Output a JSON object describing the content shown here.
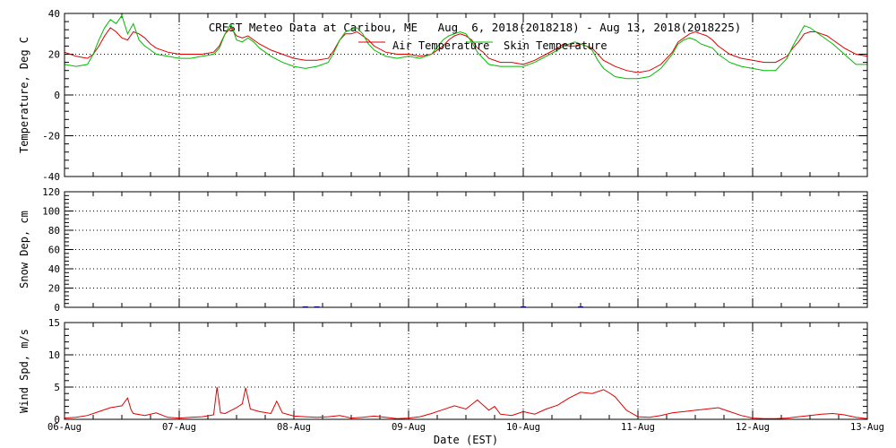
{
  "figure": {
    "title": "CREST Meteo Data at Caribou, ME   Aug  6, 2018(2018218) - Aug 13, 2018(2018225)",
    "xlabel": "Date (EST)"
  },
  "chart_data": [
    {
      "type": "line",
      "ylabel": "Temperature, Deg C",
      "ylim": [
        -40,
        40
      ],
      "yticks": [
        -40,
        -20,
        0,
        20,
        40
      ],
      "xlim": [
        0,
        7
      ],
      "xticks": [
        0,
        1,
        2,
        3,
        4,
        5,
        6,
        7
      ],
      "xtick_labels": [
        "06-Aug",
        "07-Aug",
        "08-Aug",
        "09-Aug",
        "10-Aug",
        "11-Aug",
        "12-Aug",
        "13-Aug"
      ],
      "grid": true,
      "legend_position": "top-center",
      "series": [
        {
          "name": "Air Temperature",
          "color": "#dd0000",
          "x": [
            0,
            0.1,
            0.2,
            0.25,
            0.3,
            0.35,
            0.4,
            0.45,
            0.5,
            0.55,
            0.6,
            0.65,
            0.7,
            0.75,
            0.8,
            0.9,
            1.0,
            1.1,
            1.2,
            1.3,
            1.35,
            1.4,
            1.45,
            1.5,
            1.55,
            1.6,
            1.65,
            1.7,
            1.8,
            1.9,
            2.0,
            2.1,
            2.2,
            2.3,
            2.35,
            2.4,
            2.45,
            2.5,
            2.55,
            2.6,
            2.65,
            2.7,
            2.8,
            2.9,
            3.0,
            3.1,
            3.2,
            3.3,
            3.35,
            3.4,
            3.45,
            3.5,
            3.55,
            3.6,
            3.65,
            3.7,
            3.8,
            3.9,
            4.0,
            4.1,
            4.2,
            4.3,
            4.35,
            4.4,
            4.45,
            4.5,
            4.55,
            4.6,
            4.65,
            4.7,
            4.8,
            4.9,
            5.0,
            5.1,
            5.2,
            5.3,
            5.35,
            5.4,
            5.45,
            5.5,
            5.55,
            5.6,
            5.65,
            5.7,
            5.8,
            5.9,
            6.0,
            6.1,
            6.2,
            6.3,
            6.35,
            6.4,
            6.45,
            6.5,
            6.55,
            6.6,
            6.65,
            6.7,
            6.8,
            6.9,
            7.0
          ],
          "values": [
            21,
            19,
            18,
            20,
            24,
            29,
            33,
            31,
            28,
            27,
            31,
            30,
            28,
            25,
            23,
            21,
            20,
            20,
            20,
            21,
            24,
            30,
            33,
            29,
            28,
            29,
            27,
            25,
            22,
            20,
            18,
            17,
            17,
            18,
            22,
            27,
            30,
            30,
            31,
            29,
            27,
            24,
            21,
            20,
            20,
            19,
            20,
            24,
            27,
            29,
            30,
            29,
            27,
            23,
            21,
            18,
            16,
            16,
            15,
            17,
            20,
            23,
            25,
            24,
            24,
            25,
            24,
            23,
            20,
            17,
            14,
            12,
            11,
            12,
            15,
            21,
            26,
            28,
            30,
            31,
            30,
            29,
            27,
            24,
            20,
            18,
            17,
            16,
            16,
            19,
            23,
            26,
            30,
            31,
            31,
            30,
            29,
            27,
            23,
            20,
            19
          ]
        },
        {
          "name": "Skin Temperature",
          "color": "#00bb00",
          "x": [
            0,
            0.1,
            0.2,
            0.25,
            0.3,
            0.35,
            0.4,
            0.45,
            0.5,
            0.55,
            0.6,
            0.65,
            0.7,
            0.75,
            0.8,
            0.9,
            1.0,
            1.1,
            1.2,
            1.3,
            1.35,
            1.4,
            1.45,
            1.5,
            1.55,
            1.6,
            1.65,
            1.7,
            1.8,
            1.9,
            2.0,
            2.1,
            2.2,
            2.3,
            2.35,
            2.4,
            2.45,
            2.5,
            2.55,
            2.6,
            2.65,
            2.7,
            2.8,
            2.9,
            3.0,
            3.1,
            3.2,
            3.3,
            3.35,
            3.4,
            3.45,
            3.5,
            3.55,
            3.6,
            3.65,
            3.7,
            3.8,
            3.9,
            4.0,
            4.1,
            4.2,
            4.3,
            4.35,
            4.4,
            4.45,
            4.5,
            4.55,
            4.6,
            4.65,
            4.7,
            4.8,
            4.9,
            5.0,
            5.1,
            5.2,
            5.3,
            5.35,
            5.4,
            5.45,
            5.5,
            5.55,
            5.6,
            5.65,
            5.7,
            5.8,
            5.9,
            6.0,
            6.1,
            6.2,
            6.3,
            6.35,
            6.4,
            6.45,
            6.5,
            6.55,
            6.6,
            6.65,
            6.7,
            6.8,
            6.9,
            7.0
          ],
          "values": [
            15,
            14,
            15,
            20,
            27,
            33,
            37,
            35,
            39,
            30,
            35,
            27,
            24,
            22,
            20,
            19,
            18,
            18,
            19,
            20,
            23,
            30,
            35,
            27,
            26,
            28,
            26,
            23,
            19,
            16,
            14,
            13,
            14,
            16,
            21,
            27,
            31,
            32,
            33,
            30,
            25,
            22,
            19,
            18,
            19,
            18,
            20,
            27,
            29,
            30,
            31,
            30,
            26,
            21,
            18,
            15,
            14,
            14,
            14,
            16,
            19,
            22,
            24,
            25,
            26,
            25,
            24,
            22,
            17,
            13,
            9,
            8,
            8,
            9,
            13,
            20,
            25,
            27,
            28,
            27,
            25,
            24,
            23,
            20,
            16,
            14,
            13,
            12,
            12,
            18,
            24,
            29,
            34,
            33,
            31,
            29,
            27,
            25,
            20,
            15,
            15
          ]
        }
      ]
    },
    {
      "type": "line",
      "ylabel": "Snow Dep, cm",
      "ylim": [
        0,
        120
      ],
      "yticks": [
        0,
        20,
        40,
        60,
        80,
        100,
        120
      ],
      "xlim": [
        0,
        7
      ],
      "xticks": [
        0,
        1,
        2,
        3,
        4,
        5,
        6,
        7
      ],
      "grid": true,
      "series": [
        {
          "color": "#0000cc",
          "x": [
            2.1,
            2.2,
            4.0,
            4.5
          ],
          "values": [
            0.5,
            0.5,
            0.5,
            0.5
          ]
        }
      ]
    },
    {
      "type": "line",
      "ylabel": "Wind Spd, m/s",
      "ylim": [
        0,
        15
      ],
      "yticks": [
        0,
        5,
        10,
        15
      ],
      "xlim": [
        0,
        7
      ],
      "xticks": [
        0,
        1,
        2,
        3,
        4,
        5,
        6,
        7
      ],
      "grid": true,
      "series": [
        {
          "color": "#dd0000",
          "x": [
            0,
            0.1,
            0.2,
            0.3,
            0.4,
            0.5,
            0.55,
            0.58,
            0.6,
            0.7,
            0.8,
            0.9,
            1.0,
            1.1,
            1.2,
            1.3,
            1.33,
            1.36,
            1.4,
            1.5,
            1.55,
            1.58,
            1.62,
            1.7,
            1.8,
            1.85,
            1.9,
            2.0,
            2.1,
            2.2,
            2.3,
            2.4,
            2.5,
            2.6,
            2.7,
            2.8,
            2.9,
            3.0,
            3.1,
            3.2,
            3.3,
            3.4,
            3.5,
            3.6,
            3.7,
            3.75,
            3.8,
            3.9,
            4.0,
            4.1,
            4.2,
            4.3,
            4.4,
            4.5,
            4.6,
            4.7,
            4.75,
            4.8,
            4.9,
            5.0,
            5.1,
            5.2,
            5.3,
            5.4,
            5.5,
            5.6,
            5.7,
            5.8,
            5.9,
            6.0,
            6.1,
            6.2,
            6.3,
            6.4,
            6.5,
            6.6,
            6.7,
            6.8,
            6.9,
            7.0
          ],
          "values": [
            0.2,
            0.3,
            0.6,
            1.2,
            1.8,
            2.1,
            3.3,
            1.5,
            0.9,
            0.6,
            1.0,
            0.3,
            0.2,
            0.3,
            0.4,
            0.7,
            5.0,
            1.0,
            0.9,
            1.8,
            2.4,
            4.9,
            1.6,
            1.2,
            0.9,
            2.8,
            1.0,
            0.5,
            0.4,
            0.3,
            0.4,
            0.6,
            0.2,
            0.3,
            0.5,
            0.3,
            0.1,
            0.2,
            0.4,
            0.9,
            1.5,
            2.1,
            1.6,
            3.0,
            1.4,
            2.0,
            0.8,
            0.6,
            1.2,
            0.8,
            1.6,
            2.2,
            3.3,
            4.2,
            4.0,
            4.6,
            4.1,
            3.5,
            1.4,
            0.4,
            0.3,
            0.6,
            1.0,
            1.2,
            1.4,
            1.6,
            1.8,
            1.2,
            0.6,
            0.2,
            0.1,
            0.1,
            0.2,
            0.4,
            0.6,
            0.8,
            0.9,
            0.7,
            0.3,
            0.1
          ]
        }
      ]
    }
  ]
}
